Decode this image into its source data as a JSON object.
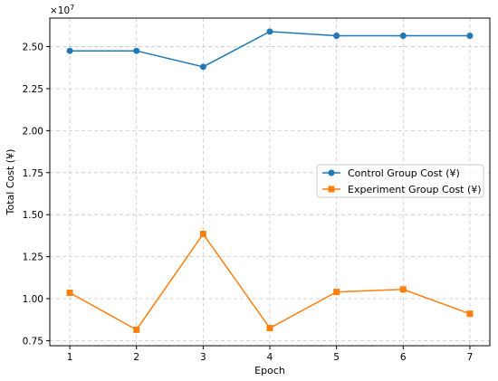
{
  "chart_data": {
    "type": "line",
    "x": [
      1,
      2,
      3,
      4,
      5,
      6,
      7
    ],
    "series": [
      {
        "name": "Control Group Cost (¥)",
        "values": [
          24750000,
          24750000,
          23800000,
          25900000,
          25650000,
          25650000,
          25650000
        ],
        "color": "#1f77b4",
        "marker": "circle"
      },
      {
        "name": "Experiment Group Cost (¥)",
        "values": [
          10350000,
          8150000,
          13850000,
          8250000,
          10400000,
          10550000,
          9100000
        ],
        "color": "#ff7f0e",
        "marker": "square"
      }
    ],
    "xlabel": "Epoch",
    "ylabel": "Total Cost (¥)",
    "xlim": [
      0.7,
      7.3
    ],
    "ylim": [
      7200000,
      26700000
    ],
    "xticks": [
      "1",
      "2",
      "3",
      "4",
      "5",
      "6",
      "7"
    ],
    "yticks": [
      "0.75",
      "1.00",
      "1.25",
      "1.50",
      "1.75",
      "2.00",
      "2.25",
      "2.50"
    ],
    "ytick_values": [
      7500000,
      10000000,
      12500000,
      15000000,
      17500000,
      20000000,
      22500000,
      25000000
    ],
    "offset_base": "×10",
    "offset_exponent": "7",
    "grid": true,
    "legend_position": "center-right"
  }
}
